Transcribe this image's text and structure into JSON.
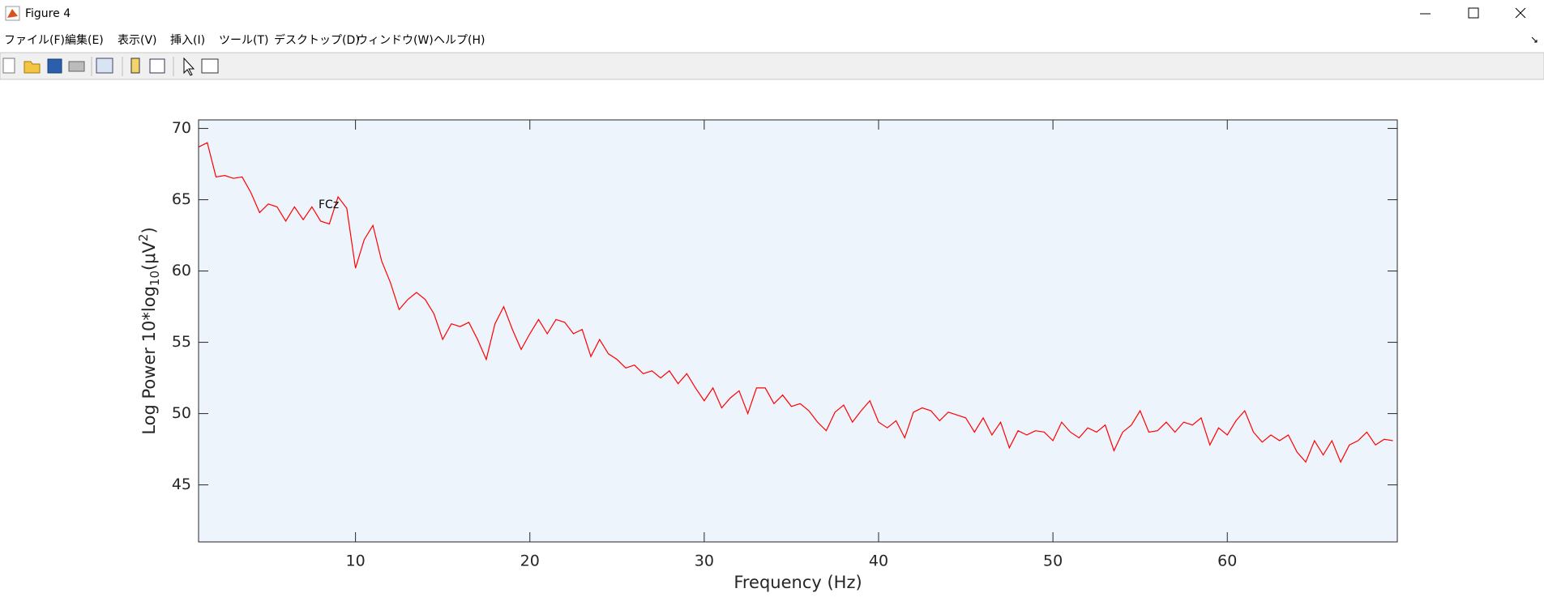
{
  "window": {
    "title": "Figure 4"
  },
  "menu": [
    "ファイル(F)",
    "編集(E)",
    "表示(V)",
    "挿入(I)",
    "ツール(T)",
    "デスクトップ(D)",
    "ウィンドウ(W)",
    "ヘルプ(H)"
  ],
  "chart_data": {
    "type": "line",
    "xlabel": "Frequency (Hz)",
    "ylabel_parts": [
      "Log Power 10*log",
      "10",
      "(μV",
      "2",
      ")"
    ],
    "annotation": "FCz",
    "color": "#ff0000",
    "x": [
      1,
      1.5,
      2,
      2.5,
      3,
      3.5,
      4,
      4.5,
      5,
      5.5,
      6,
      6.5,
      7,
      7.5,
      8,
      8.5,
      9,
      9.5,
      10,
      10.5,
      11,
      11.5,
      12,
      12.5,
      13,
      13.5,
      14,
      14.5,
      15,
      15.5,
      16,
      16.5,
      17,
      17.5,
      18,
      18.5,
      19,
      19.5,
      20,
      20.5,
      21,
      21.5,
      22,
      22.5,
      23,
      23.5,
      24,
      24.5,
      25,
      25.5,
      26,
      26.5,
      27,
      27.5,
      28,
      28.5,
      29,
      29.5,
      30,
      30.5,
      31,
      31.5,
      32,
      32.5,
      33,
      33.5,
      34,
      34.5,
      35,
      35.5,
      36,
      36.5,
      37,
      37.5,
      38,
      38.5,
      39,
      39.5,
      40,
      40.5,
      41,
      41.5,
      42,
      42.5,
      43,
      43.5,
      44,
      44.5,
      45,
      45.5,
      46,
      46.5,
      47,
      47.5,
      48,
      48.5,
      49,
      49.5,
      50,
      50.5,
      51,
      51.5,
      52,
      52.5,
      53,
      53.5,
      54,
      54.5,
      55,
      55.5,
      56,
      56.5,
      57,
      57.5,
      58,
      58.5,
      59,
      59.5,
      60,
      60.5,
      61,
      61.5,
      62,
      62.5,
      63,
      63.5,
      64,
      64.5,
      65,
      65.5,
      66,
      66.5,
      67,
      67.5,
      68,
      68.5,
      69,
      69.5
    ],
    "values": [
      68.7,
      69.0,
      66.6,
      66.7,
      66.5,
      66.6,
      65.5,
      64.1,
      64.7,
      64.5,
      63.5,
      64.5,
      63.6,
      64.5,
      63.5,
      63.3,
      65.2,
      64.4,
      60.2,
      62.2,
      63.2,
      60.7,
      59.2,
      57.3,
      58.0,
      58.5,
      58.0,
      57.0,
      55.2,
      56.3,
      56.1,
      56.4,
      55.2,
      53.8,
      56.3,
      57.5,
      55.9,
      54.5,
      55.6,
      56.6,
      55.6,
      56.6,
      56.4,
      55.6,
      55.9,
      54.0,
      55.2,
      54.2,
      53.8,
      53.2,
      53.4,
      52.8,
      53.0,
      52.5,
      53.0,
      52.1,
      52.8,
      51.8,
      50.9,
      51.8,
      50.4,
      51.1,
      51.6,
      50.0,
      51.8,
      51.8,
      50.7,
      51.3,
      50.5,
      50.7,
      50.2,
      49.4,
      48.8,
      50.1,
      50.6,
      49.4,
      50.2,
      50.9,
      49.4,
      49.0,
      49.5,
      48.3,
      50.1,
      50.4,
      50.2,
      49.5,
      50.1,
      49.9,
      49.7,
      48.7,
      49.7,
      48.5,
      49.4,
      47.6,
      48.8,
      48.5,
      48.8,
      48.7,
      48.1,
      49.4,
      48.7,
      48.3,
      49.0,
      48.7,
      49.2,
      47.4,
      48.7,
      49.2,
      50.2,
      48.7,
      48.8,
      49.4,
      48.7,
      49.4,
      49.2,
      49.7,
      47.8,
      49.0,
      48.5,
      49.5,
      50.2,
      48.7,
      48.0,
      48.5,
      48.1,
      48.5,
      47.3,
      46.6,
      48.1,
      47.1,
      48.1,
      46.6,
      47.8,
      48.1,
      48.7,
      47.8,
      48.2,
      48.1
    ],
    "xlim": [
      1,
      69.75
    ],
    "xticks": [
      10,
      20,
      30,
      40,
      50,
      60
    ],
    "ylim": [
      41,
      70.6
    ],
    "yticks": [
      45,
      50,
      55,
      60,
      65,
      70
    ],
    "grid": false
  }
}
